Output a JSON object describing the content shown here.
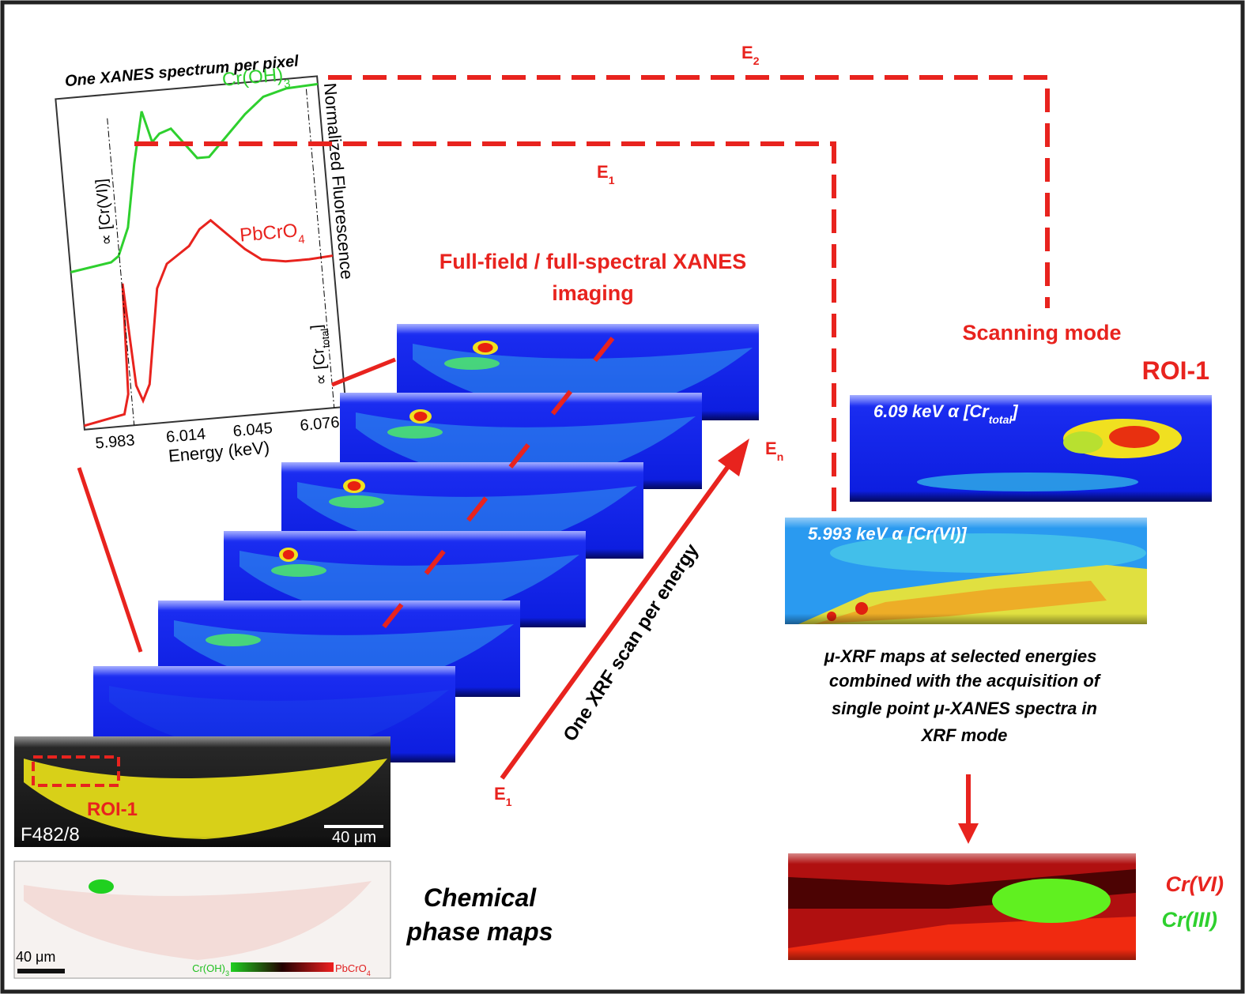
{
  "spectrum": {
    "title": "One XANES spectrum per pixel",
    "x_label": "Energy (keV)",
    "y_label": "Normalized Fluorescence",
    "x_ticks": [
      "5.983",
      "6.014",
      "6.045",
      "6.076"
    ],
    "green_label": {
      "text": "Cr(OH)",
      "sub": "3"
    },
    "red_label": {
      "text": "PbCrO",
      "sub": "4"
    },
    "cr6_marker": "∝ [Cr(VI)]",
    "total_marker": {
      "text": "∝ [Cr",
      "sub": "total",
      "end": "]"
    }
  },
  "energy_labels": {
    "e2": {
      "text": "E",
      "sub": "2"
    },
    "e1_top": {
      "text": "E",
      "sub": "1"
    },
    "en": {
      "text": "E",
      "sub": "n"
    },
    "e1_bottom": {
      "text": "E",
      "sub": "1"
    }
  },
  "full_field": {
    "title_lines": [
      "Full-field / full-spectral XANES",
      "imaging"
    ],
    "scan_label": "One XRF scan per energy"
  },
  "scanning": {
    "title": "Scanning mode",
    "roi": "ROI-1",
    "map_total": {
      "text": "6.09 keV α [Cr",
      "sub": "total",
      "end": "]"
    },
    "map_cr6": "5.993 keV α [Cr(VI)]",
    "description_lines": [
      "μ-XRF maps at selected energies",
      "combined with the acquisition of",
      "single point μ-XANES spectra in",
      "XRF mode"
    ],
    "legend": [
      "Cr(VI)",
      "Cr(III)"
    ]
  },
  "sample": {
    "roi": "ROI-1",
    "id": "F482/8",
    "scale": "40 μm"
  },
  "phase_map": {
    "caption_lines": [
      "Chemical",
      "phase maps"
    ],
    "scale": "40 μm",
    "colorbar": [
      {
        "text": "Cr(OH)",
        "sub": "3"
      },
      {
        "text": "PbCrO",
        "sub": "4"
      }
    ]
  }
}
